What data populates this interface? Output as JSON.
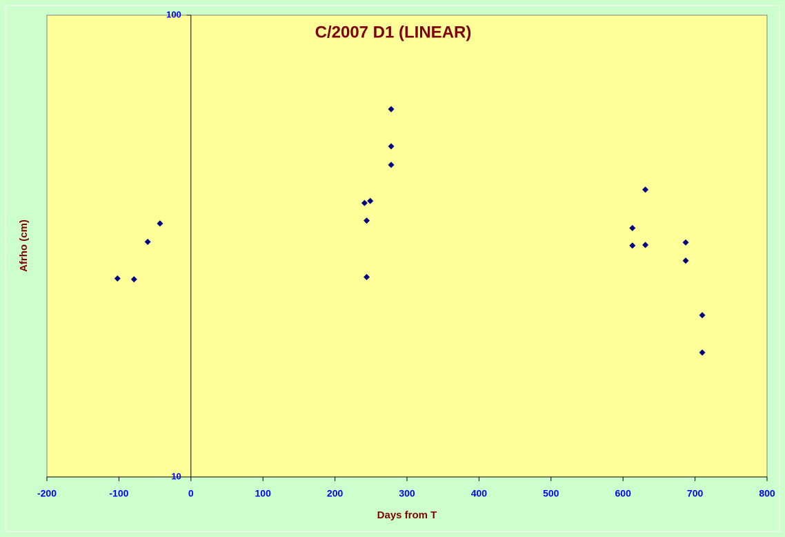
{
  "chart_data": {
    "type": "scatter",
    "title": "C/2007 D1 (LINEAR)",
    "x_label": "Days from T",
    "y_label": "Afrho (cm)",
    "x": [
      -102,
      -79,
      -60,
      -43,
      241,
      249,
      244,
      244,
      278,
      278,
      278,
      631,
      613,
      613,
      631,
      687,
      687,
      710,
      710
    ],
    "series": [
      {
        "name": "Afrho",
        "color": "#000080",
        "values": [
          26.9,
          26.8,
          32.3,
          35.4,
          39.2,
          39.6,
          35.9,
          27.1,
          62.6,
          52.0,
          47.4,
          41.9,
          34.6,
          31.7,
          31.8,
          32.2,
          29.4,
          22.4,
          18.6
        ]
      }
    ],
    "xlim": [
      -200,
      800
    ],
    "xticks": [
      -200,
      -100,
      0,
      100,
      200,
      300,
      400,
      500,
      600,
      700,
      800
    ],
    "ylim": [
      10,
      100
    ],
    "yticks": [
      10,
      100
    ],
    "log_y": true,
    "grid": false
  }
}
